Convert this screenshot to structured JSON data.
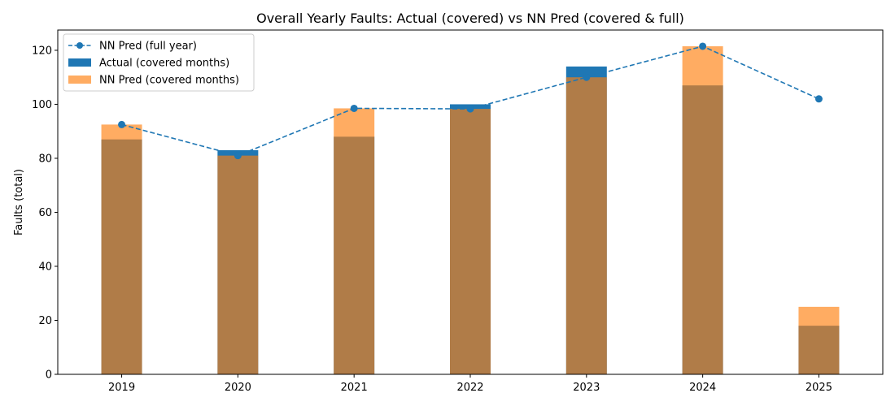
{
  "chart_data": {
    "type": "bar",
    "title": "Overall Yearly Faults: Actual (covered) vs NN Pred (covered & full)",
    "xlabel": "",
    "ylabel": "Faults (total)",
    "categories": [
      "2019",
      "2020",
      "2021",
      "2022",
      "2023",
      "2024",
      "2025"
    ],
    "ylim": [
      0,
      127.5
    ],
    "yticks": [
      0,
      20,
      40,
      60,
      80,
      100,
      120
    ],
    "grid": false,
    "legend_position": "top-left",
    "series": [
      {
        "name": "Actual (covered months)",
        "kind": "bar",
        "color": "#1f77b4",
        "values": [
          87,
          83,
          88,
          100,
          114,
          107,
          18
        ]
      },
      {
        "name": "NN Pred (covered months)",
        "kind": "bar",
        "color": "#ff7f0e",
        "alpha": 0.65,
        "values": [
          92.5,
          81,
          98.5,
          98.3,
          110,
          121.5,
          25
        ]
      },
      {
        "name": "NN Pred (full year)",
        "kind": "line",
        "color": "#1f77b4",
        "linestyle": "dashed",
        "marker": "circle",
        "values": [
          92.5,
          81,
          98.5,
          98.3,
          110,
          121.5,
          102
        ]
      }
    ]
  }
}
